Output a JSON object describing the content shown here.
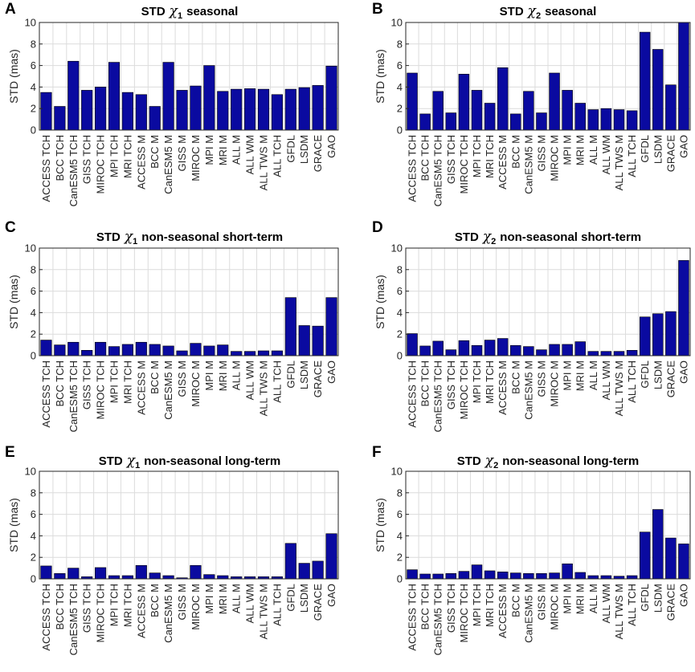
{
  "figure": {
    "bar_color": "#0a0aa0",
    "bar_edge_color": "#000000"
  },
  "chart_data": [
    {
      "panel": "A",
      "type": "bar",
      "title_prefix": "STD",
      "title_symbol": "χ",
      "title_subscript": "1",
      "title_suffix": "seasonal",
      "ylabel": "STD (mas)",
      "ylim": [
        0,
        10
      ],
      "yticks": [
        0,
        2,
        4,
        6,
        8,
        10
      ],
      "grid": true,
      "categories": [
        "ACCESS TCH",
        "BCC TCH",
        "CanESM5 TCH",
        "GISS TCH",
        "MIROC TCH",
        "MPI TCH",
        "MRI TCH",
        "ACCESS M",
        "BCC M",
        "CanESM5 M",
        "GISS M",
        "MIROC M",
        "MPI M",
        "MRI M",
        "ALL M",
        "ALL WM",
        "ALL TWS M",
        "ALL TCH",
        "GFDL",
        "LSDM",
        "GRACE",
        "GAO"
      ],
      "values": [
        3.5,
        2.2,
        6.4,
        3.7,
        4.0,
        6.3,
        3.5,
        3.3,
        2.2,
        6.3,
        3.7,
        4.1,
        6.0,
        3.6,
        3.8,
        3.85,
        3.8,
        3.3,
        3.8,
        3.95,
        4.15,
        5.95
      ]
    },
    {
      "panel": "B",
      "type": "bar",
      "title_prefix": "STD",
      "title_symbol": "χ",
      "title_subscript": "2",
      "title_suffix": "seasonal",
      "ylabel": "STD (mas)",
      "ylim": [
        0,
        10
      ],
      "yticks": [
        0,
        2,
        4,
        6,
        8,
        10
      ],
      "grid": true,
      "categories": [
        "ACCESS TCH",
        "BCC TCH",
        "CanESM5 TCH",
        "GISS TCH",
        "MIROC TCH",
        "MPI TCH",
        "MRI TCH",
        "ACCESS M",
        "BCC M",
        "CanESM5 M",
        "GISS M",
        "MIROC M",
        "MPI M",
        "MRI M",
        "ALL M",
        "ALL WM",
        "ALL TWS M",
        "ALL TCH",
        "GFDL",
        "LSDM",
        "GRACE",
        "GAO"
      ],
      "values": [
        5.3,
        1.5,
        3.6,
        1.6,
        5.2,
        3.7,
        2.5,
        5.8,
        1.5,
        3.6,
        1.6,
        5.3,
        3.7,
        2.5,
        1.9,
        2.0,
        1.9,
        1.8,
        9.1,
        7.5,
        4.2,
        10.0
      ]
    },
    {
      "panel": "C",
      "type": "bar",
      "title_prefix": "STD",
      "title_symbol": "χ",
      "title_subscript": "1",
      "title_suffix": "non-seasonal short-term",
      "ylabel": "STD (mas)",
      "ylim": [
        0,
        10
      ],
      "yticks": [
        0,
        2,
        4,
        6,
        8,
        10
      ],
      "grid": true,
      "categories": [
        "ACCESS TCH",
        "BCC TCH",
        "CanESM5 TCH",
        "GISS TCH",
        "MIROC TCH",
        "MPI TCH",
        "MRI TCH",
        "ACCESS M",
        "BCC M",
        "CanESM5 M",
        "GISS M",
        "MIROC M",
        "MPI M",
        "MRI M",
        "ALL M",
        "ALL WM",
        "ALL TWS M",
        "ALL TCH",
        "GFDL",
        "LSDM",
        "GRACE",
        "GAO"
      ],
      "values": [
        1.45,
        1.0,
        1.25,
        0.5,
        1.25,
        0.85,
        1.05,
        1.25,
        1.05,
        0.9,
        0.45,
        1.15,
        0.9,
        1.0,
        0.4,
        0.4,
        0.45,
        0.45,
        5.4,
        2.8,
        2.75,
        5.4
      ]
    },
    {
      "panel": "D",
      "type": "bar",
      "title_prefix": "STD",
      "title_symbol": "χ",
      "title_subscript": "2",
      "title_suffix": "non-seasonal short-term",
      "ylabel": "STD (mas)",
      "ylim": [
        0,
        10
      ],
      "yticks": [
        0,
        2,
        4,
        6,
        8,
        10
      ],
      "grid": true,
      "categories": [
        "ACCESS TCH",
        "BCC TCH",
        "CanESM5 TCH",
        "GISS TCH",
        "MIROC TCH",
        "MPI TCH",
        "MRI TCH",
        "ACCESS M",
        "BCC M",
        "CanESM5 M",
        "GISS M",
        "MIROC M",
        "MPI M",
        "MRI M",
        "ALL M",
        "ALL WM",
        "ALL TWS M",
        "ALL TCH",
        "GFDL",
        "LSDM",
        "GRACE",
        "GAO"
      ],
      "values": [
        2.05,
        0.9,
        1.35,
        0.55,
        1.4,
        0.95,
        1.45,
        1.6,
        0.95,
        0.85,
        0.55,
        1.05,
        1.05,
        1.3,
        0.4,
        0.4,
        0.4,
        0.5,
        3.6,
        3.9,
        4.1,
        8.85
      ]
    },
    {
      "panel": "E",
      "type": "bar",
      "title_prefix": "STD",
      "title_symbol": "χ",
      "title_subscript": "1",
      "title_suffix": "non-seasonal long-term",
      "ylabel": "STD (mas)",
      "ylim": [
        0,
        10
      ],
      "yticks": [
        0,
        2,
        4,
        6,
        8,
        10
      ],
      "grid": true,
      "categories": [
        "ACCESS TCH",
        "BCC TCH",
        "CanESM5 TCH",
        "GISS TCH",
        "MIROC TCH",
        "MPI TCH",
        "MRI TCH",
        "ACCESS M",
        "BCC M",
        "CanESM5 M",
        "GISS M",
        "MIROC M",
        "MPI M",
        "MRI M",
        "ALL M",
        "ALL WM",
        "ALL TWS M",
        "ALL TCH",
        "GFDL",
        "LSDM",
        "GRACE",
        "GAO"
      ],
      "values": [
        1.2,
        0.5,
        1.0,
        0.2,
        1.05,
        0.3,
        0.3,
        1.25,
        0.55,
        0.3,
        0.1,
        1.25,
        0.4,
        0.3,
        0.2,
        0.2,
        0.2,
        0.2,
        3.3,
        1.45,
        1.65,
        4.2
      ]
    },
    {
      "panel": "F",
      "type": "bar",
      "title_prefix": "STD",
      "title_symbol": "χ",
      "title_subscript": "2",
      "title_suffix": "non-seasonal long-term",
      "ylabel": "STD (mas)",
      "ylim": [
        0,
        10
      ],
      "yticks": [
        0,
        2,
        4,
        6,
        8,
        10
      ],
      "grid": true,
      "categories": [
        "ACCESS TCH",
        "BCC TCH",
        "CanESM5 TCH",
        "GISS TCH",
        "MIROC TCH",
        "MPI TCH",
        "MRI TCH",
        "ACCESS M",
        "BCC M",
        "CanESM5 M",
        "GISS M",
        "MIROC M",
        "MPI M",
        "MRI M",
        "ALL M",
        "ALL WM",
        "ALL TWS M",
        "ALL TCH",
        "GFDL",
        "LSDM",
        "GRACE",
        "GAO"
      ],
      "values": [
        0.85,
        0.45,
        0.45,
        0.5,
        0.7,
        1.3,
        0.75,
        0.65,
        0.55,
        0.5,
        0.5,
        0.55,
        1.4,
        0.6,
        0.3,
        0.3,
        0.25,
        0.3,
        4.35,
        6.45,
        3.8,
        3.25
      ]
    }
  ]
}
